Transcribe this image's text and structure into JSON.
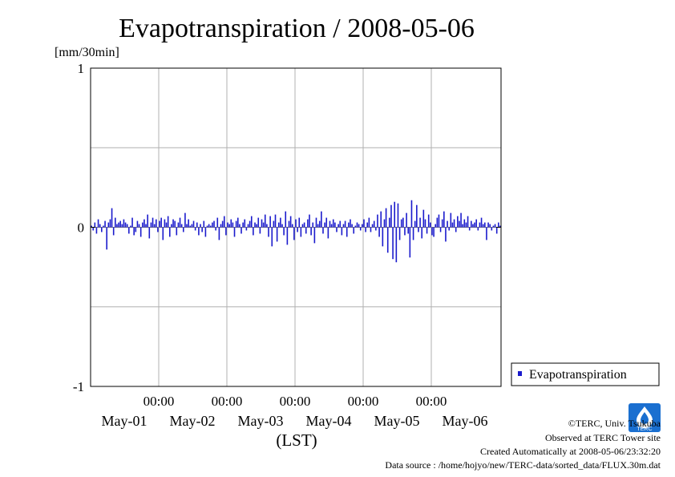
{
  "chart_data": {
    "type": "bar",
    "title": "Evapotranspiration / 2008-05-06",
    "ylabel": "[mm/30min]",
    "xlabel": "(LST)",
    "ylim": [
      -1,
      1
    ],
    "yticks": [
      "-1",
      "0",
      "1"
    ],
    "x_time_labels": [
      "00:00",
      "00:00",
      "00:00",
      "00:00",
      "00:00"
    ],
    "x_date_labels": [
      "May-01",
      "May-02",
      "May-03",
      "May-04",
      "May-05",
      "May-06"
    ],
    "grid": true,
    "legend_position": "bottom-right",
    "series": [
      {
        "name": "Evapotranspiration",
        "color": "#1a1acc",
        "x_start": "2008-04-30 12:00",
        "interval": "30min",
        "values": [
          0.01,
          -0.02,
          0.03,
          -0.04,
          0.05,
          0.02,
          -0.03,
          0.01,
          0.04,
          -0.14,
          0.03,
          0.05,
          0.12,
          -0.05,
          0.06,
          0.02,
          0.03,
          0.04,
          0.02,
          0.05,
          0.03,
          0.02,
          -0.04,
          0.01,
          0.06,
          -0.05,
          -0.03,
          0.04,
          0.02,
          -0.06,
          0.03,
          0.05,
          0.02,
          0.08,
          -0.07,
          0.03,
          0.06,
          0.02,
          0.05,
          -0.03,
          0.04,
          0.06,
          -0.08,
          0.05,
          0.03,
          0.07,
          -0.06,
          0.02,
          0.05,
          0.04,
          -0.05,
          0.03,
          0.06,
          0.02,
          -0.03,
          0.09,
          0.02,
          0.05,
          0.01,
          0.02,
          0.04,
          -0.02,
          0.03,
          -0.05,
          0.02,
          -0.03,
          0.04,
          -0.06,
          0.01,
          0.02,
          0.01,
          0.03,
          0.04,
          -0.02,
          0.06,
          -0.08,
          0.02,
          0.04,
          0.07,
          -0.05,
          0.03,
          0.02,
          0.05,
          0.03,
          -0.06,
          0.04,
          0.06,
          0.02,
          -0.04,
          0.03,
          0.05,
          -0.02,
          0.02,
          0.04,
          0.07,
          -0.05,
          0.03,
          0.02,
          0.06,
          -0.04,
          0.05,
          0.03,
          0.08,
          0.02,
          -0.06,
          0.07,
          -0.12,
          0.04,
          0.08,
          -0.09,
          0.03,
          0.06,
          0.02,
          -0.05,
          0.1,
          -0.11,
          0.04,
          0.07,
          0.02,
          -0.08,
          0.05,
          -0.03,
          0.06,
          -0.06,
          0.02,
          0.03,
          -0.04,
          0.05,
          0.08,
          -0.05,
          0.03,
          -0.1,
          0.06,
          0.02,
          0.04,
          0.1,
          -0.04,
          0.03,
          0.06,
          -0.07,
          0.04,
          0.02,
          0.05,
          0.03,
          -0.03,
          0.02,
          0.04,
          -0.05,
          0.02,
          0.04,
          -0.06,
          0.03,
          0.05,
          0.02,
          -0.04,
          0.01,
          0.03,
          0.02,
          -0.02,
          0.02,
          0.05,
          -0.03,
          0.03,
          0.06,
          -0.03,
          0.02,
          0.04,
          -0.02,
          0.08,
          -0.06,
          0.1,
          -0.12,
          0.05,
          0.12,
          -0.16,
          0.06,
          0.14,
          -0.2,
          0.16,
          -0.22,
          0.15,
          -0.08,
          0.05,
          0.06,
          -0.05,
          0.09,
          -0.04,
          -0.19,
          0.17,
          -0.08,
          0.04,
          0.14,
          -0.03,
          0.06,
          -0.07,
          0.11,
          0.05,
          -0.04,
          0.08,
          0.03,
          -0.05,
          -0.06,
          0.02,
          0.06,
          0.08,
          -0.03,
          0.05,
          0.1,
          -0.09,
          0.04,
          -0.02,
          0.09,
          0.03,
          0.05,
          -0.03,
          0.07,
          0.04,
          0.09,
          0.02,
          0.05,
          0.03,
          0.07,
          -0.02,
          0.04,
          0.02,
          0.03,
          0.05,
          -0.02,
          0.03,
          0.06,
          0.02,
          0.03,
          -0.08,
          0.03,
          0.02,
          -0.02,
          0.01,
          0.02,
          -0.04,
          0.03,
          0.01
        ]
      }
    ]
  },
  "footer": {
    "line1": "©TERC, Univ. Tsukuba",
    "line2": "Observed at TERC Tower site",
    "line3": "Created Automatically at 2008-05-06/23:32:20",
    "line4": "Data source : /home/hojyo/new/TERC-data/sorted_data/FLUX.30m.dat"
  },
  "logo": {
    "text": "TERC",
    "color": "#1a6fd0"
  }
}
